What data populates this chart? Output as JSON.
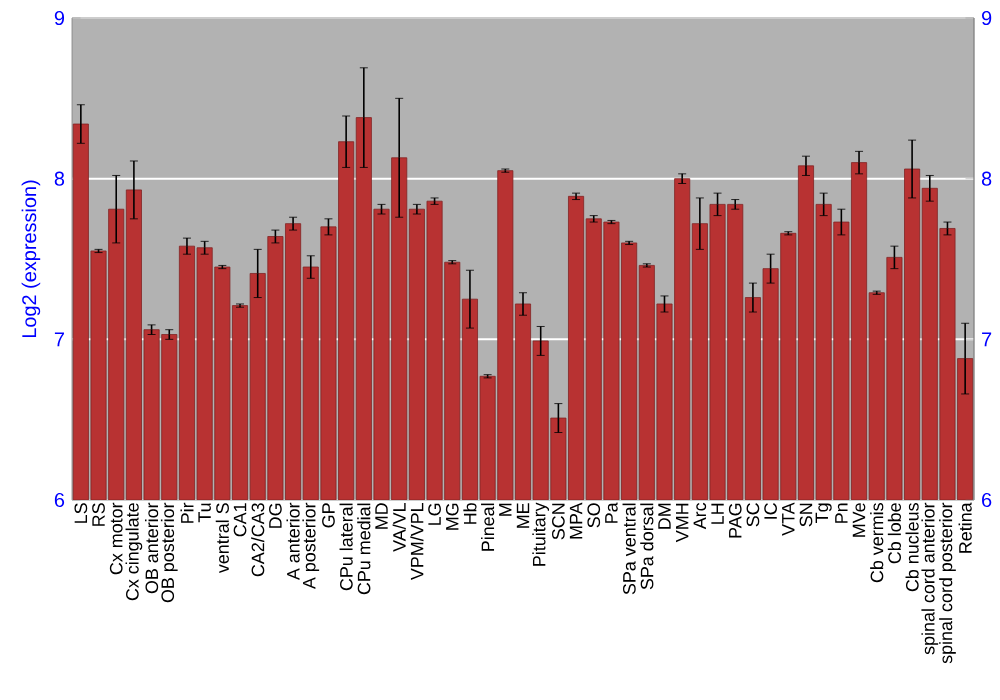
{
  "chart_data": {
    "type": "bar",
    "ylabel": "Log2 (expression)",
    "categories": [
      "LS",
      "RS",
      "Cx motor",
      "Cx cingulate",
      "OB anterior",
      "OB posterior",
      "Pir",
      "Tu",
      "ventral S",
      "CA1",
      "CA2/CA3",
      "DG",
      "A anterior",
      "A posterior",
      "GP",
      "CPu lateral",
      "CPu medial",
      "MD",
      "VA/VL",
      "VPM/VPL",
      "LG",
      "MG",
      "Hb",
      "Pineal",
      "M",
      "ME",
      "Pituitary",
      "SCN",
      "MPA",
      "SO",
      "Pa",
      "SPa ventral",
      "SPa dorsal",
      "DM",
      "VMH",
      "Arc",
      "LH",
      "PAG",
      "SC",
      "IC",
      "VTA",
      "SN",
      "Tg",
      "Pn",
      "MVe",
      "Cb vermis",
      "Cb lobe",
      "Cb nucleus",
      "spinal cord anterior",
      "spinal cord posterior",
      "Retina"
    ],
    "values": [
      8.34,
      7.55,
      7.81,
      7.93,
      7.06,
      7.03,
      7.58,
      7.57,
      7.45,
      7.21,
      7.41,
      7.64,
      7.72,
      7.45,
      7.7,
      8.23,
      8.38,
      7.81,
      8.13,
      7.81,
      7.86,
      7.48,
      7.25,
      6.77,
      8.05,
      7.22,
      6.99,
      6.51,
      7.89,
      7.75,
      7.73,
      7.6,
      7.46,
      7.22,
      8.0,
      7.72,
      7.84,
      7.84,
      7.26,
      7.44,
      7.66,
      8.08,
      7.84,
      7.73,
      8.1,
      7.29,
      7.51,
      8.06,
      7.94,
      7.69,
      6.88
    ],
    "errors": [
      0.12,
      0.01,
      0.21,
      0.18,
      0.03,
      0.03,
      0.05,
      0.04,
      0.01,
      0.01,
      0.15,
      0.04,
      0.04,
      0.07,
      0.05,
      0.16,
      0.31,
      0.03,
      0.37,
      0.03,
      0.02,
      0.01,
      0.18,
      0.01,
      0.01,
      0.07,
      0.09,
      0.09,
      0.02,
      0.02,
      0.01,
      0.01,
      0.01,
      0.05,
      0.03,
      0.16,
      0.07,
      0.03,
      0.09,
      0.09,
      0.01,
      0.06,
      0.07,
      0.08,
      0.07,
      0.01,
      0.07,
      0.18,
      0.08,
      0.04,
      0.22
    ],
    "color": "#b83232",
    "ylim": [
      6,
      9
    ],
    "yticks": [
      6,
      7,
      8,
      9
    ],
    "y2lim": [
      6,
      9
    ],
    "y2ticks": [
      6,
      7,
      8,
      9
    ],
    "grid": "y"
  }
}
